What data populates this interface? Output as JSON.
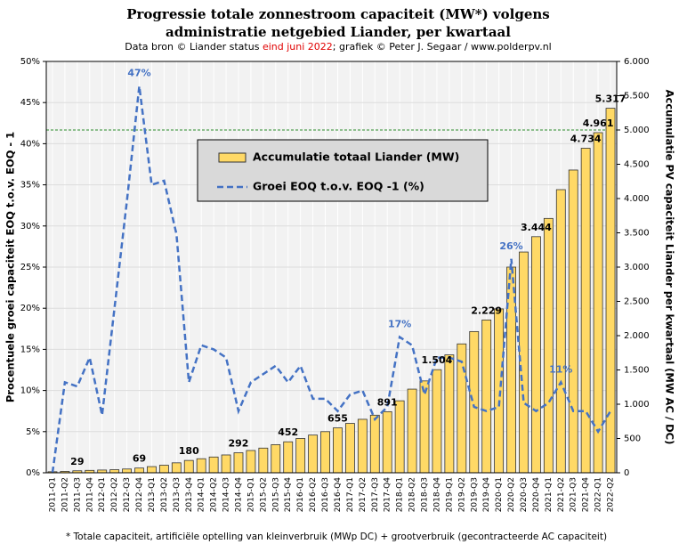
{
  "chart_data": {
    "type": "bar+line",
    "title": [
      "Progressie totale zonnestroom capaciteit (MW*) volgens",
      "administratie netgebied Liander, per kwartaal"
    ],
    "subtitle_parts": [
      {
        "text": "Data bron © Liander status ",
        "color": "#000000"
      },
      {
        "text": "eind juni 2022",
        "color": "#e00000"
      },
      {
        "text": "; grafiek © Peter J. Segaar / www.polderpv.nl",
        "color": "#000000"
      }
    ],
    "footnote": "* Totale capaciteit, artificiële optelling van kleinverbruik (MWp DC) + grootverbruik (gecontracteerde AC capaciteit)",
    "y_label": "Procentuele groei capaciteit EOQ t.o.v. EOQ - 1",
    "y2_label": "Accumulatie PV capaciteit Liander per kwartaal (MW AC / DC)",
    "categories": [
      "2011-Q1",
      "2011-Q2",
      "2011-Q3",
      "2011-Q4",
      "2012-Q1",
      "2012-Q2",
      "2012-Q3",
      "2012-Q4",
      "2013-Q1",
      "2013-Q2",
      "2013-Q3",
      "2013-Q4",
      "2014-Q1",
      "2014-Q2",
      "2014-Q3",
      "2014-Q4",
      "2015-Q1",
      "2015-Q2",
      "2015-Q3",
      "2015-Q4",
      "2016-Q1",
      "2016-Q2",
      "2016-Q3",
      "2016-Q4",
      "2017-Q1",
      "2017-Q2",
      "2017-Q3",
      "2017-Q4",
      "2018-Q1",
      "2018-Q2",
      "2018-Q3",
      "2018-Q4",
      "2019-Q1",
      "2019-Q2",
      "2019-Q3",
      "2019-Q4",
      "2020-Q1",
      "2020-Q2",
      "2020-Q3",
      "2020-Q4",
      "2021-Q1",
      "2021-Q2",
      "2021-Q3",
      "2021-Q4",
      "2022-Q1",
      "2022-Q2"
    ],
    "series": [
      {
        "name": "Accumulatie totaal Liander (MW)",
        "type": "bar",
        "axis": "y2",
        "color": "#ffd966",
        "values": [
          15,
          20,
          29,
          35,
          40,
          45,
          55,
          69,
          90,
          110,
          145,
          180,
          205,
          230,
          260,
          292,
          325,
          360,
          410,
          452,
          500,
          550,
          600,
          655,
          720,
          780,
          840,
          891,
          1050,
          1220,
          1340,
          1504,
          1720,
          1880,
          2060,
          2229,
          2390,
          3000,
          3220,
          3444,
          3710,
          4130,
          4416,
          4734,
          4961,
          5317
        ],
        "value_labels": [
          null,
          null,
          "29",
          null,
          null,
          null,
          null,
          "69",
          null,
          null,
          null,
          "180",
          null,
          null,
          null,
          "292",
          null,
          null,
          null,
          "452",
          null,
          null,
          null,
          "655",
          null,
          null,
          null,
          "891",
          null,
          null,
          null,
          "1.504",
          null,
          null,
          null,
          "2.229",
          null,
          null,
          null,
          "3.444",
          null,
          null,
          null,
          "4.734",
          "4.961",
          "5.317"
        ]
      },
      {
        "name": "Groei EOQ t.o.v. EOQ -1 (%)",
        "type": "line",
        "axis": "y",
        "color": "#4472c4",
        "values": [
          0,
          11,
          10.5,
          14,
          7,
          20,
          33,
          47,
          35,
          35.5,
          29,
          11,
          15.5,
          15,
          14,
          7.5,
          11,
          12,
          13,
          11,
          13,
          9,
          9,
          7.5,
          9.5,
          10,
          6.5,
          8,
          16.5,
          15.5,
          9.5,
          14,
          14,
          13.5,
          8,
          7.5,
          8,
          26,
          8.5,
          7.5,
          8.5,
          11,
          7.5,
          7.5,
          5,
          7.5
        ],
        "value_labels": [
          null,
          null,
          null,
          null,
          null,
          null,
          null,
          "47%",
          null,
          null,
          null,
          null,
          null,
          null,
          null,
          null,
          null,
          null,
          null,
          null,
          null,
          null,
          null,
          null,
          null,
          null,
          null,
          null,
          "17%",
          null,
          null,
          null,
          null,
          null,
          null,
          null,
          null,
          "26%",
          null,
          null,
          null,
          "11%",
          null,
          null,
          null,
          null
        ]
      }
    ],
    "ylim": [
      0,
      50
    ],
    "yticks": [
      {
        "value": 0,
        "label": "0%"
      },
      {
        "value": 5,
        "label": "5%"
      },
      {
        "value": 10,
        "label": "10%"
      },
      {
        "value": 15,
        "label": "15%"
      },
      {
        "value": 20,
        "label": "20%"
      },
      {
        "value": 25,
        "label": "25%"
      },
      {
        "value": 30,
        "label": "30%"
      },
      {
        "value": 35,
        "label": "35%"
      },
      {
        "value": 40,
        "label": "40%"
      },
      {
        "value": 45,
        "label": "45%"
      },
      {
        "value": 50,
        "label": "50%"
      }
    ],
    "y2lim": [
      0,
      6000
    ],
    "y2ticks": [
      0,
      500,
      {
        "value": 1000,
        "label": "1.000"
      },
      {
        "value": 1500,
        "label": "1.500"
      },
      {
        "value": 2000,
        "label": "2.000"
      },
      {
        "value": 2500,
        "label": "2.500"
      },
      {
        "value": 3000,
        "label": "3.000"
      },
      {
        "value": 3500,
        "label": "3.500"
      },
      {
        "value": 4000,
        "label": "4.000"
      },
      {
        "value": 4500,
        "label": "4.500"
      },
      {
        "value": 5000,
        "label": "5.000"
      },
      {
        "value": 5500,
        "label": "5.500"
      },
      {
        "value": 6000,
        "label": "6.000"
      }
    ],
    "y2_reference_line": 5000,
    "grid": true
  }
}
